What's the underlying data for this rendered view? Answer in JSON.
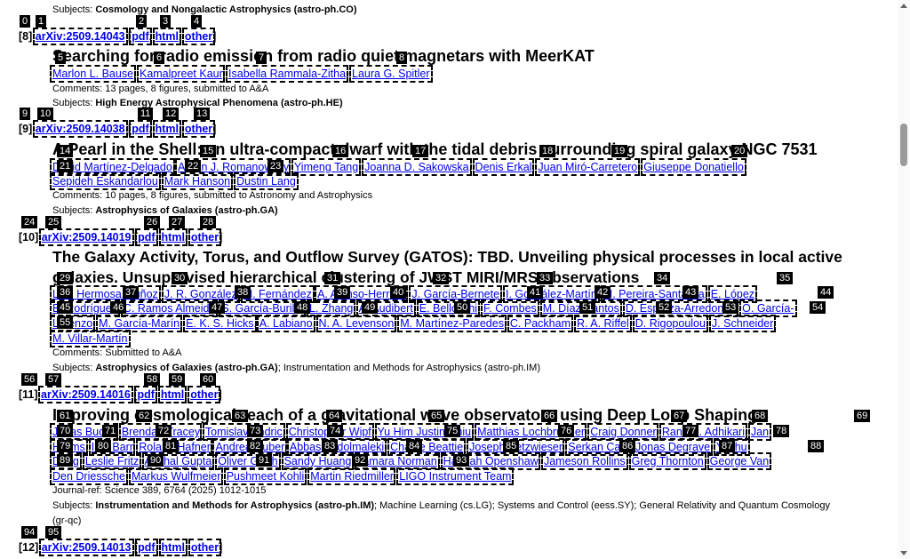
{
  "entry7": {
    "subjects_label": "Subjects:",
    "subjects_primary": "Cosmology and Nongalactic Astrophysics (astro-ph.CO)"
  },
  "entry8": {
    "index": "[8]",
    "arxiv": "arXiv:2509.14043",
    "pdf": "pdf",
    "html": "html",
    "other": "other",
    "title": "Searching for radio emission from radio quiet magnetars with MeerKAT",
    "authors": [
      "Marlon L. Bause",
      "Kamalpreet Kaur",
      "Isabella Rammala-Zitha",
      "Laura G. Spitler"
    ],
    "comments": "Comments: 13 pages, 8 figures, submitted to A&A",
    "subjects_label": "Subjects:",
    "subjects_primary": "High Energy Astrophysical Phenomena (astro-ph.HE)"
  },
  "entry9": {
    "index": "[9]",
    "arxiv": "arXiv:2509.14038",
    "pdf": "pdf",
    "html": "html",
    "other": "other",
    "title": "A Pearl in the Shell: an ultra-compact dwarf with the tidal debris surrounding spiral galaxy NGC 7531",
    "authors": [
      "David Martínez-Delgado",
      "Aaron J. Romanowsky",
      "Yimeng Tang",
      "Joanna D. Sakowska",
      "Denis Erkal",
      "Juan Miró-Carretero",
      "Giuseppe Donatiello",
      "Sepideh Eskandarlou",
      "Mark Hanson",
      "Dustin Lang"
    ],
    "comments": "Comments: 10 pages, 8 figures, submitted to Astronomy and Astrophysics",
    "subjects_label": "Subjects:",
    "subjects_primary": "Astrophysics of Galaxies (astro-ph.GA)"
  },
  "entry10": {
    "index": "[10]",
    "arxiv": "arXiv:2509.14019",
    "pdf": "pdf",
    "html": "html",
    "other": "other",
    "title_line1": "The Galaxy Activity, Torus, and Outflow Survey (GATOS): TBD. Unveiling physical processes in local active",
    "title_line2": "galaxies. Unsupervised hierarchical clustering of JWST MIRI/MRS observations",
    "authors_line1": [
      "Lulú Hermosa Muñoz",
      "J. R. González",
      "M. Fernández",
      "A. Alonso-Herrero",
      "J. García-Bernete",
      "I. González-Martín",
      "M. Pereira-Santaella",
      "E. López"
    ],
    "authors_line2": [
      "E. Rodríguez",
      "C. Ramos Almeida",
      "S. García-Burillo",
      "L. Zhang",
      "A. Audibert",
      "E. Bellocchi",
      "F. Combes",
      "M. Díaz-Santos",
      "D. Esparza-Arredondo",
      "O. García-"
    ],
    "authors_line3": [
      "Lorenzo",
      "M. García-Marín",
      "E. K. S. Hicks",
      "A. Labiano",
      "N. A. Levenson",
      "M. Martínez-Paredes",
      "C. Packham",
      "R. A. Riffel",
      "D. Rigopoulou",
      "J. Schneider"
    ],
    "authors_line4": [
      "M. Villar-Martín"
    ],
    "comments": "Comments: Submitted to A&A",
    "subjects_label": "Subjects:",
    "subjects_primary": "Astrophysics of Galaxies (astro-ph.GA)",
    "subjects_secondary": "; Instrumentation and Methods for Astrophysics (astro-ph.IM)"
  },
  "entry11": {
    "index": "[11]",
    "arxiv": "arXiv:2509.14016",
    "pdf": "pdf",
    "html": "html",
    "other": "other",
    "title": "Improving cosmological reach of a gravitational wave observatory using Deep Loop Shaping",
    "authors_line1": [
      "Jonas Buchli",
      "Brendan Tracey",
      "Tomislav Andric",
      "Christopher Wipf",
      "Yu Him Justin Chiu",
      "Matthias Lochbrunner",
      "Craig Donner",
      "Rana X. Adhikari",
      "Jan"
    ],
    "authors_line2": [
      "Harms",
      "Iain Barr",
      "Roland Hafner",
      "Andrea Huber",
      "Abbas Abdolmaleki",
      "Charlie Beattie",
      "Joseph Betzwieser",
      "Serkan Cabi",
      "Jonas Degrave",
      "Yuzhu"
    ],
    "authors_line3": [
      "Dong",
      "Leslie Fritz",
      "Anchal Gupta",
      "Oliver Groth",
      "Sandy Huang",
      "Tamara Norman",
      "Hannah Openshaw",
      "Jameson Rollins",
      "Greg Thornton",
      "George Van"
    ],
    "authors_line4": [
      "Den Driessche",
      "Markus Wulfmeier",
      "Pushmeet Kohli",
      "Martin Riedmiller",
      "LIGO Instrument Team"
    ],
    "journal": "Journal-ref: Science 389, 6764 (2025) 1012-1015",
    "subjects_label": "Subjects:",
    "subjects_primary": "Instrumentation and Methods for Astrophysics (astro-ph.IM)",
    "subjects_secondary": "; Machine Learning (cs.LG); Systems and Control (eess.SY); General Relativity and Quantum Cosmology",
    "subjects_secondary2": "(gr-qc)"
  },
  "entry12": {
    "index": "[12]",
    "arxiv": "arXiv:2509.14013",
    "pdf": "pdf",
    "html": "html",
    "other": "other"
  },
  "tags": [
    "0",
    "1",
    "2",
    "3",
    "4",
    "5",
    "6",
    "7",
    "8",
    "9",
    "10",
    "11",
    "12",
    "13",
    "14",
    "15",
    "16",
    "17",
    "18",
    "19",
    "20",
    "21",
    "22",
    "23",
    "24",
    "25",
    "26",
    "27",
    "28",
    "29",
    "30",
    "31",
    "32",
    "33",
    "34",
    "35",
    "36",
    "37",
    "38",
    "39",
    "40",
    "41",
    "42",
    "43",
    "44",
    "45",
    "46",
    "47",
    "48",
    "49",
    "50",
    "51",
    "52",
    "53",
    "54",
    "55",
    "56",
    "57",
    "58",
    "59",
    "60",
    "61",
    "62",
    "63",
    "64",
    "65",
    "66",
    "67",
    "68",
    "69",
    "70",
    "71",
    "72",
    "73",
    "74",
    "75",
    "76",
    "77",
    "78",
    "79",
    "80",
    "81",
    "82",
    "83",
    "84",
    "85",
    "86",
    "87",
    "88",
    "89",
    "90",
    "91",
    "92",
    "93",
    "94",
    "95"
  ]
}
